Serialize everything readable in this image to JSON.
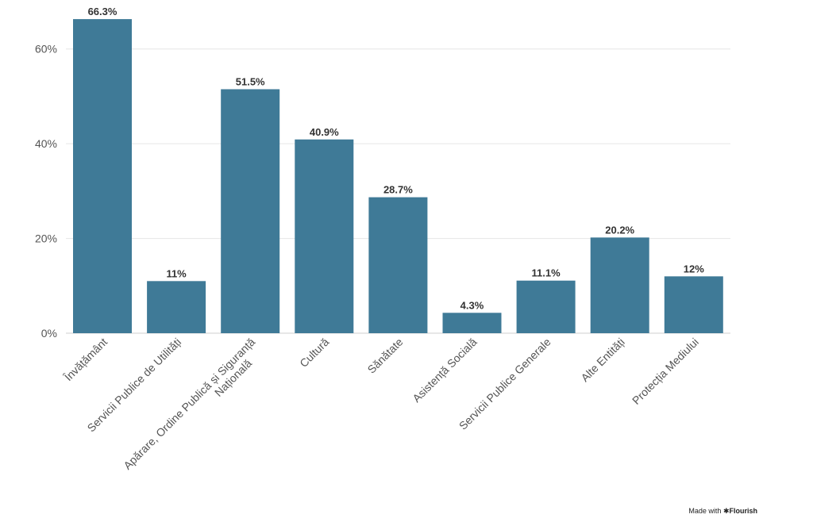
{
  "chart_data": {
    "type": "bar",
    "categories": [
      "Învățământ",
      "Servicii Publice de Utilități",
      "Apărare, Ordine Publică și Siguranță Națională",
      "Cultură",
      "Sănătate",
      "Asistență Socială",
      "Servicii Publice Generale",
      "Alte Entități",
      "Protecția Mediului"
    ],
    "values": [
      66.3,
      11,
      51.5,
      40.9,
      28.7,
      4.3,
      11.1,
      20.2,
      12
    ],
    "value_labels": [
      "66.3%",
      "11%",
      "51.5%",
      "40.9%",
      "28.7%",
      "4.3%",
      "11.1%",
      "20.2%",
      "12%"
    ],
    "title": "",
    "xlabel": "",
    "ylabel": "",
    "ylim": [
      0,
      70
    ],
    "yticks": [
      0,
      20,
      40,
      60
    ],
    "ytick_labels": [
      "0%",
      "20%",
      "40%",
      "60%"
    ],
    "grid": true,
    "bar_color": "#3f7a97"
  },
  "footer": {
    "credit_prefix": "Made with",
    "credit_brand": "Flourish"
  }
}
